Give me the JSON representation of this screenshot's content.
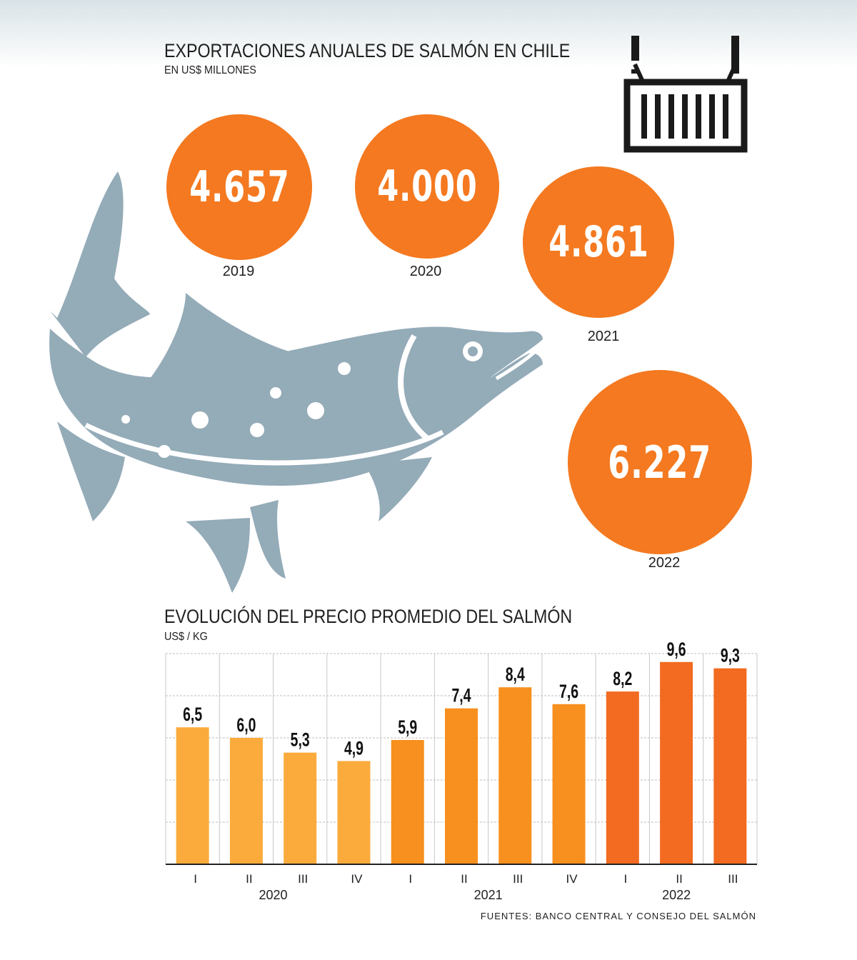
{
  "exports": {
    "title": "EXPORTACIONES ANUALES DE SALMÓN EN CHILE",
    "unit": "EN US$ MILLONES",
    "items": [
      {
        "year": "2019",
        "value": "4.657"
      },
      {
        "year": "2020",
        "value": "4.000"
      },
      {
        "year": "2021",
        "value": "4.861"
      },
      {
        "year": "2022",
        "value": "6.227"
      }
    ]
  },
  "price": {
    "title": "EVOLUCIÓN DEL PRECIO PROMEDIO DEL SALMÓN",
    "unit": "US$ / KG"
  },
  "chart_data": {
    "type": "bar",
    "title": "EVOLUCIÓN DEL PRECIO PROMEDIO DEL SALMÓN",
    "ylabel": "US$ / KG",
    "categories": [
      "I",
      "II",
      "III",
      "IV",
      "I",
      "II",
      "III",
      "IV",
      "I",
      "II",
      "III"
    ],
    "groups": [
      {
        "label": "2020",
        "start": 0,
        "end": 3
      },
      {
        "label": "2021",
        "start": 4,
        "end": 7
      },
      {
        "label": "2022",
        "start": 8,
        "end": 10
      }
    ],
    "values": [
      6.5,
      6.0,
      5.3,
      4.9,
      5.9,
      7.4,
      8.4,
      7.6,
      8.2,
      9.6,
      9.3
    ],
    "value_labels": [
      "6,5",
      "6,0",
      "5,3",
      "4,9",
      "5,9",
      "7,4",
      "8,4",
      "7,6",
      "8,2",
      "9,6",
      "9,3"
    ],
    "bar_colors": [
      "#fbab3c",
      "#fbab3c",
      "#fbab3c",
      "#fbab3c",
      "#f7901e",
      "#f7901e",
      "#f7901e",
      "#f7901e",
      "#f26b21",
      "#f26b21",
      "#f26b21"
    ],
    "ylim": [
      0,
      10
    ],
    "grid": true
  },
  "source": "FUENTES: BANCO CENTRAL Y CONSEJO DEL SALMÓN",
  "colors": {
    "bubble": "#f47920",
    "fish": "#94abb8",
    "grid": "#c8c8c8"
  },
  "icons": {
    "fish": "salmon-icon",
    "container": "shipping-container-icon"
  }
}
